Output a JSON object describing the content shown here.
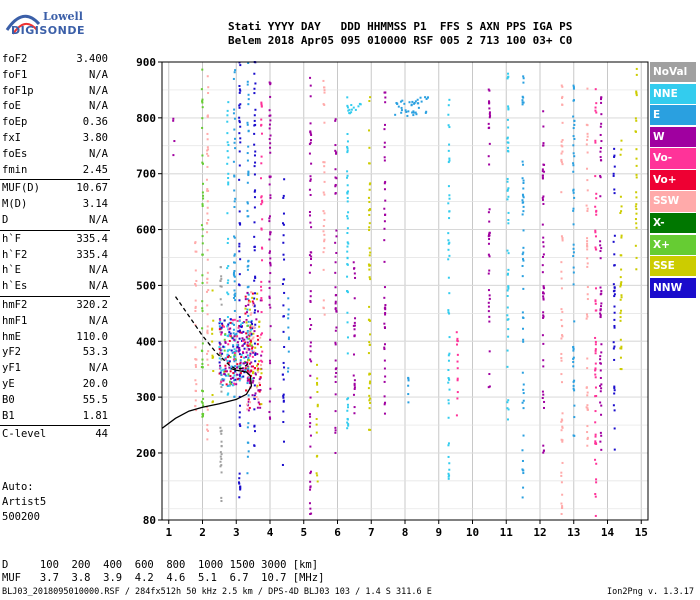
{
  "logo": {
    "line1": "Lowell",
    "line2": "DIGISONDE"
  },
  "header": {
    "line1": "Stati YYYY DAY   DDD HHMMSS P1  FFS S AXN PPS IGA PS",
    "line2": "Belem 2018 Apr05 095 010000 RSF 005 2 713 100 03+ C0"
  },
  "params": [
    {
      "label": "foF2",
      "value": "3.400"
    },
    {
      "label": "foF1",
      "value": "N/A"
    },
    {
      "label": "foF1p",
      "value": "N/A"
    },
    {
      "label": "foE",
      "value": "N/A"
    },
    {
      "label": "foEp",
      "value": "0.36"
    },
    {
      "label": "fxI",
      "value": "3.80"
    },
    {
      "label": "foEs",
      "value": "N/A"
    },
    {
      "label": "fmin",
      "value": "2.45"
    },
    {
      "label": "MUF(D)",
      "value": "10.67",
      "sep_before": true
    },
    {
      "label": "M(D)",
      "value": "3.14"
    },
    {
      "label": "D",
      "value": "N/A"
    },
    {
      "label": "h`F",
      "value": "335.4",
      "sep_before": true
    },
    {
      "label": "h`F2",
      "value": "335.4"
    },
    {
      "label": "h`E",
      "value": "N/A"
    },
    {
      "label": "h`Es",
      "value": "N/A"
    },
    {
      "label": "hmF2",
      "value": "320.2",
      "sep_before": true
    },
    {
      "label": "hmF1",
      "value": "N/A"
    },
    {
      "label": "hmE",
      "value": "110.0"
    },
    {
      "label": "yF2",
      "value": "53.3"
    },
    {
      "label": "yF1",
      "value": "N/A"
    },
    {
      "label": "yE",
      "value": "20.0"
    },
    {
      "label": "B0",
      "value": "55.5"
    },
    {
      "label": "B1",
      "value": "1.81"
    },
    {
      "label": "C-level",
      "value": "44",
      "sep_before": true
    }
  ],
  "auto": {
    "line1": "Auto:",
    "line2": "Artist5",
    "line3": "500200"
  },
  "legend": [
    {
      "label": "NoVal",
      "color": "#a0a0a0"
    },
    {
      "label": "NNE",
      "color": "#33ccee"
    },
    {
      "label": "E",
      "color": "#2aa0e0"
    },
    {
      "label": "W",
      "color": "#a000a0"
    },
    {
      "label": "Vo-",
      "color": "#ff3399"
    },
    {
      "label": "Vo+",
      "color": "#ee0033"
    },
    {
      "label": "SSW",
      "color": "#ffaaaa"
    },
    {
      "label": "X-",
      "color": "#007700"
    },
    {
      "label": "X+",
      "color": "#66cc33"
    },
    {
      "label": "SSE",
      "color": "#cccc00"
    },
    {
      "label": "NNW",
      "color": "#1a0ccc"
    }
  ],
  "dmuf": {
    "line1": "D     100  200  400  600  800  1000 1500 3000 [km]",
    "line2": "MUF   3.7  3.8  3.9  4.2  4.6  5.1  6.7  10.7 [MHz]"
  },
  "footer": "BLJ03_2018095010000.RSF / 284fx512h 50 kHz 2.5 km / DPS-4D BLJ03 103 / 1.4 S 311.6 E",
  "version": "Ion2Png v. 1.3.17",
  "chart_data": {
    "type": "scatter",
    "xlim": [
      0.8,
      15.2
    ],
    "ylim": [
      80,
      900
    ],
    "x_ticks": [
      1,
      2,
      3,
      4,
      5,
      6,
      7,
      8,
      9,
      10,
      11,
      12,
      13,
      14,
      15
    ],
    "y_ticks": [
      80,
      200,
      300,
      400,
      500,
      600,
      700,
      800,
      900
    ],
    "grid": true,
    "traces": [
      {
        "name": "profile_dashed",
        "style": "dashed",
        "color": "#000000",
        "points": [
          [
            1.2,
            480
          ],
          [
            1.6,
            445
          ],
          [
            2.0,
            410
          ],
          [
            2.4,
            380
          ],
          [
            2.8,
            357
          ],
          [
            3.0,
            350
          ],
          [
            3.2,
            352
          ],
          [
            3.35,
            360
          ]
        ]
      },
      {
        "name": "profile_solid",
        "style": "solid",
        "color": "#000000",
        "points": [
          [
            0.8,
            244
          ],
          [
            1.2,
            262
          ],
          [
            1.6,
            275
          ],
          [
            2.0,
            282
          ],
          [
            2.5,
            288
          ],
          [
            3.0,
            296
          ],
          [
            3.3,
            305
          ],
          [
            3.45,
            320
          ],
          [
            3.42,
            338
          ],
          [
            3.3,
            345
          ],
          [
            3.0,
            348
          ],
          [
            2.85,
            351
          ]
        ]
      }
    ],
    "echo_bands": [
      {
        "x": 1.15,
        "y": [
          700,
          800
        ],
        "color": "#a000a0"
      },
      {
        "x": 1.8,
        "y": [
          250,
          600
        ],
        "color": "#ffaaaa"
      },
      {
        "x": 2.0,
        "y": [
          250,
          900
        ],
        "color": "#66cc33"
      },
      {
        "x": 2.15,
        "y": [
          200,
          900
        ],
        "color": "#ffaaaa"
      },
      {
        "x": 2.3,
        "y": [
          280,
          500
        ],
        "color": "#cccc00"
      },
      {
        "x": 2.55,
        "y": [
          80,
          540
        ],
        "color": "#a0a0a0"
      },
      {
        "x": 2.75,
        "y": [
          300,
          860
        ],
        "color": "#33ccee"
      },
      {
        "x": 2.95,
        "y": [
          260,
          900
        ],
        "color": "#2aa0e0"
      },
      {
        "x": 3.1,
        "y": [
          120,
          900
        ],
        "color": "#1a0ccc"
      },
      {
        "x": 3.35,
        "y": [
          160,
          900
        ],
        "color": "#2aa0e0"
      },
      {
        "x": 3.55,
        "y": [
          200,
          900
        ],
        "color": "#1a0ccc"
      },
      {
        "x": 3.75,
        "y": [
          300,
          860
        ],
        "color": "#ff3399"
      },
      {
        "x": 4.0,
        "y": [
          260,
          880
        ],
        "color": "#a000a0"
      },
      {
        "x": 4.4,
        "y": [
          170,
          700
        ],
        "color": "#1a0ccc"
      },
      {
        "x": 4.55,
        "y": [
          340,
          480
        ],
        "color": "#2aa0e0"
      },
      {
        "x": 5.2,
        "y": [
          80,
          880
        ],
        "color": "#a000a0"
      },
      {
        "x": 5.4,
        "y": [
          120,
          360
        ],
        "color": "#cccc00"
      },
      {
        "x": 5.6,
        "y": [
          440,
          880
        ],
        "color": "#ffaaaa"
      },
      {
        "x": 5.95,
        "y": [
          200,
          800
        ],
        "color": "#a000a0"
      },
      {
        "x": 6.3,
        "y": [
          220,
          860
        ],
        "color": "#33ccee"
      },
      {
        "x": 6.5,
        "y": [
          270,
          560
        ],
        "color": "#a000a0"
      },
      {
        "x": 6.95,
        "y": [
          230,
          880
        ],
        "color": "#cccc00"
      },
      {
        "x": 7.4,
        "y": [
          260,
          860
        ],
        "color": "#a000a0"
      },
      {
        "x": 8.1,
        "y": [
          260,
          340
        ],
        "color": "#2aa0e0"
      },
      {
        "x": 9.3,
        "y": [
          130,
          850
        ],
        "color": "#33ccee"
      },
      {
        "x": 9.55,
        "y": [
          250,
          420
        ],
        "color": "#ff3399"
      },
      {
        "x": 10.5,
        "y": [
          310,
          860
        ],
        "color": "#a000a0"
      },
      {
        "x": 11.05,
        "y": [
          260,
          880
        ],
        "color": "#33ccee"
      },
      {
        "x": 11.5,
        "y": [
          120,
          880
        ],
        "color": "#2aa0e0"
      },
      {
        "x": 12.1,
        "y": [
          200,
          860
        ],
        "color": "#a000a0"
      },
      {
        "x": 12.65,
        "y": [
          80,
          880
        ],
        "color": "#ffaaaa"
      },
      {
        "x": 13.0,
        "y": [
          230,
          880
        ],
        "color": "#2aa0e0"
      },
      {
        "x": 13.4,
        "y": [
          200,
          860
        ],
        "color": "#ffaaaa"
      },
      {
        "x": 13.65,
        "y": [
          80,
          860
        ],
        "color": "#ff3399"
      },
      {
        "x": 13.8,
        "y": [
          200,
          860
        ],
        "color": "#a000a0"
      },
      {
        "x": 14.2,
        "y": [
          200,
          750
        ],
        "color": "#1a0ccc"
      },
      {
        "x": 14.4,
        "y": [
          320,
          760
        ],
        "color": "#cccc00"
      },
      {
        "x": 14.85,
        "y": [
          470,
          900
        ],
        "color": "#cccc00"
      }
    ],
    "echo_clusters": [
      {
        "x": 8.2,
        "y": 820,
        "dx": 0.5,
        "dy": 18,
        "n": 40,
        "color": "#2aa0e0"
      },
      {
        "x": 6.6,
        "y": 815,
        "dx": 0.3,
        "dy": 10,
        "n": 12,
        "color": "#33ccee"
      },
      {
        "x": 3.0,
        "y": 380,
        "dx": 0.5,
        "dy": 60,
        "n": 260,
        "colors": [
          "#ee0033",
          "#a000a0",
          "#1a0ccc",
          "#ff3399",
          "#33ccee",
          "#66cc33",
          "#2aa0e0"
        ]
      },
      {
        "x": 3.5,
        "y": 380,
        "dx": 0.25,
        "dy": 110,
        "n": 120,
        "colors": [
          "#ffaaaa",
          "#cccc00",
          "#a000a0",
          "#ee0033"
        ]
      }
    ]
  }
}
